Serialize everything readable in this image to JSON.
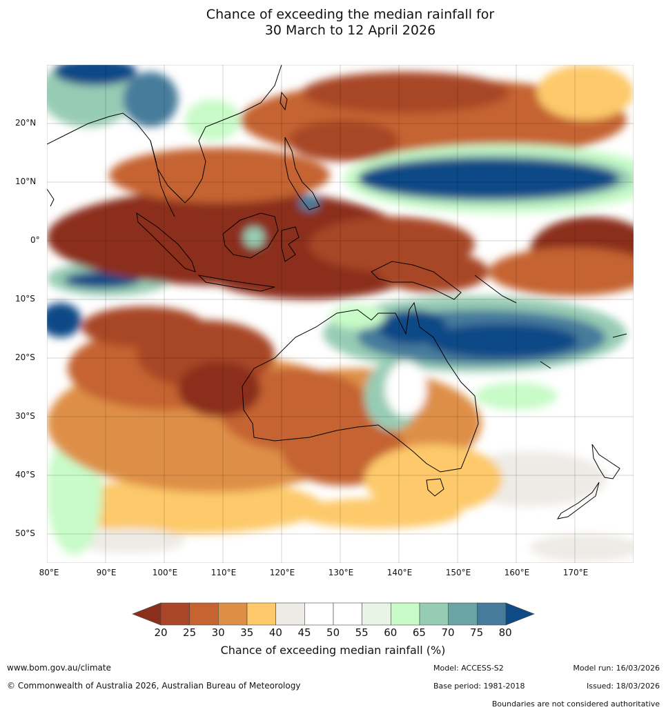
{
  "title": {
    "line1": "Chance of exceeding the median rainfall for",
    "line2": "30 March to 12 April 2026"
  },
  "map": {
    "lat_labels": [
      "20°N",
      "10°N",
      "0°",
      "10°S",
      "20°S",
      "30°S",
      "40°S",
      "50°S"
    ],
    "lon_labels": [
      "80°E",
      "90°E",
      "100°E",
      "110°E",
      "120°E",
      "130°E",
      "140°E",
      "150°E",
      "160°E",
      "170°E"
    ],
    "lon_range": [
      80,
      180
    ],
    "lat_range": [
      -55,
      30
    ]
  },
  "colorbar": {
    "ticks": [
      "20",
      "25",
      "30",
      "35",
      "40",
      "45",
      "50",
      "55",
      "60",
      "65",
      "70",
      "75",
      "80"
    ],
    "colors": [
      "#8b2f1c",
      "#a84627",
      "#c56431",
      "#de8f46",
      "#fdc96a",
      "#eeebe6",
      "#ffffff",
      "#ffffff",
      "#e8f5e6",
      "#c8fbc8",
      "#97ccb4",
      "#6ba4a4",
      "#467b9b",
      "#0e4a86"
    ],
    "label": "Chance of exceeding median rainfall (%)"
  },
  "footer": {
    "website": "www.bom.gov.au/climate",
    "copyright": "© Commonwealth of Australia 2026, Australian Bureau of Meteorology",
    "model": "Model: ACCESS-S2",
    "base_period": "Base period: 1981-2018",
    "model_run": "Model run: 16/03/2026",
    "issued": "Issued: 18/03/2026",
    "boundaries": "Boundaries are not considered authoritative"
  }
}
